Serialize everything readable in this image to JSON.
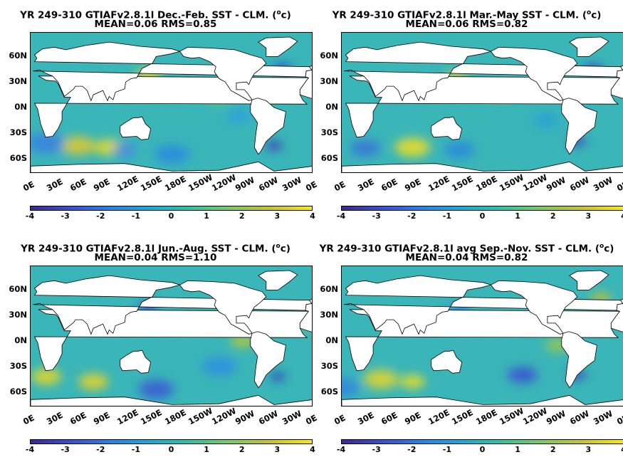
{
  "colorbar_ticks": [
    "-4",
    "-3",
    "-2",
    "-1",
    "0",
    "1",
    "2",
    "3",
    "4"
  ],
  "lat_labels": [
    "60N",
    "30N",
    "0N",
    "30S",
    "60S"
  ],
  "lon_labels": [
    "0E",
    "30E",
    "60E",
    "90E",
    "120E",
    "150E",
    "180E",
    "150W",
    "120W",
    "90W",
    "60W",
    "30W",
    "0E"
  ],
  "colors": {
    "land": "#ffffff",
    "ocean_base": "#3ab5b8",
    "frame": "#000000"
  },
  "panels": [
    {
      "title_line1": "YR 249-310 GTIAFv2.8.1l  Dec.-Feb. SST - CLM. (",
      "unit_sup": "o",
      "title_suffix": "c)",
      "stats": "MEAN=0.06   RMS=0.85"
    },
    {
      "title_line1": "YR 249-310 GTIAFv2.8.1l Mar.-May SST - CLM. (",
      "unit_sup": "o",
      "title_suffix": "c)",
      "stats": "MEAN=0.06   RMS=0.82"
    },
    {
      "title_line1": "YR 249-310 GTIAFv2.8.1l Jun.-Aug. SST - CLM. (",
      "unit_sup": "o",
      "title_suffix": "c)",
      "stats": "MEAN=0.04   RMS=1.10"
    },
    {
      "title_line1": "YR 249-310 GTIAFv2.8.1l avg Sep.-Nov. SST - CLM. (",
      "unit_sup": "o",
      "title_suffix": "c)",
      "stats": "MEAN=0.04   RMS=0.82"
    }
  ]
}
